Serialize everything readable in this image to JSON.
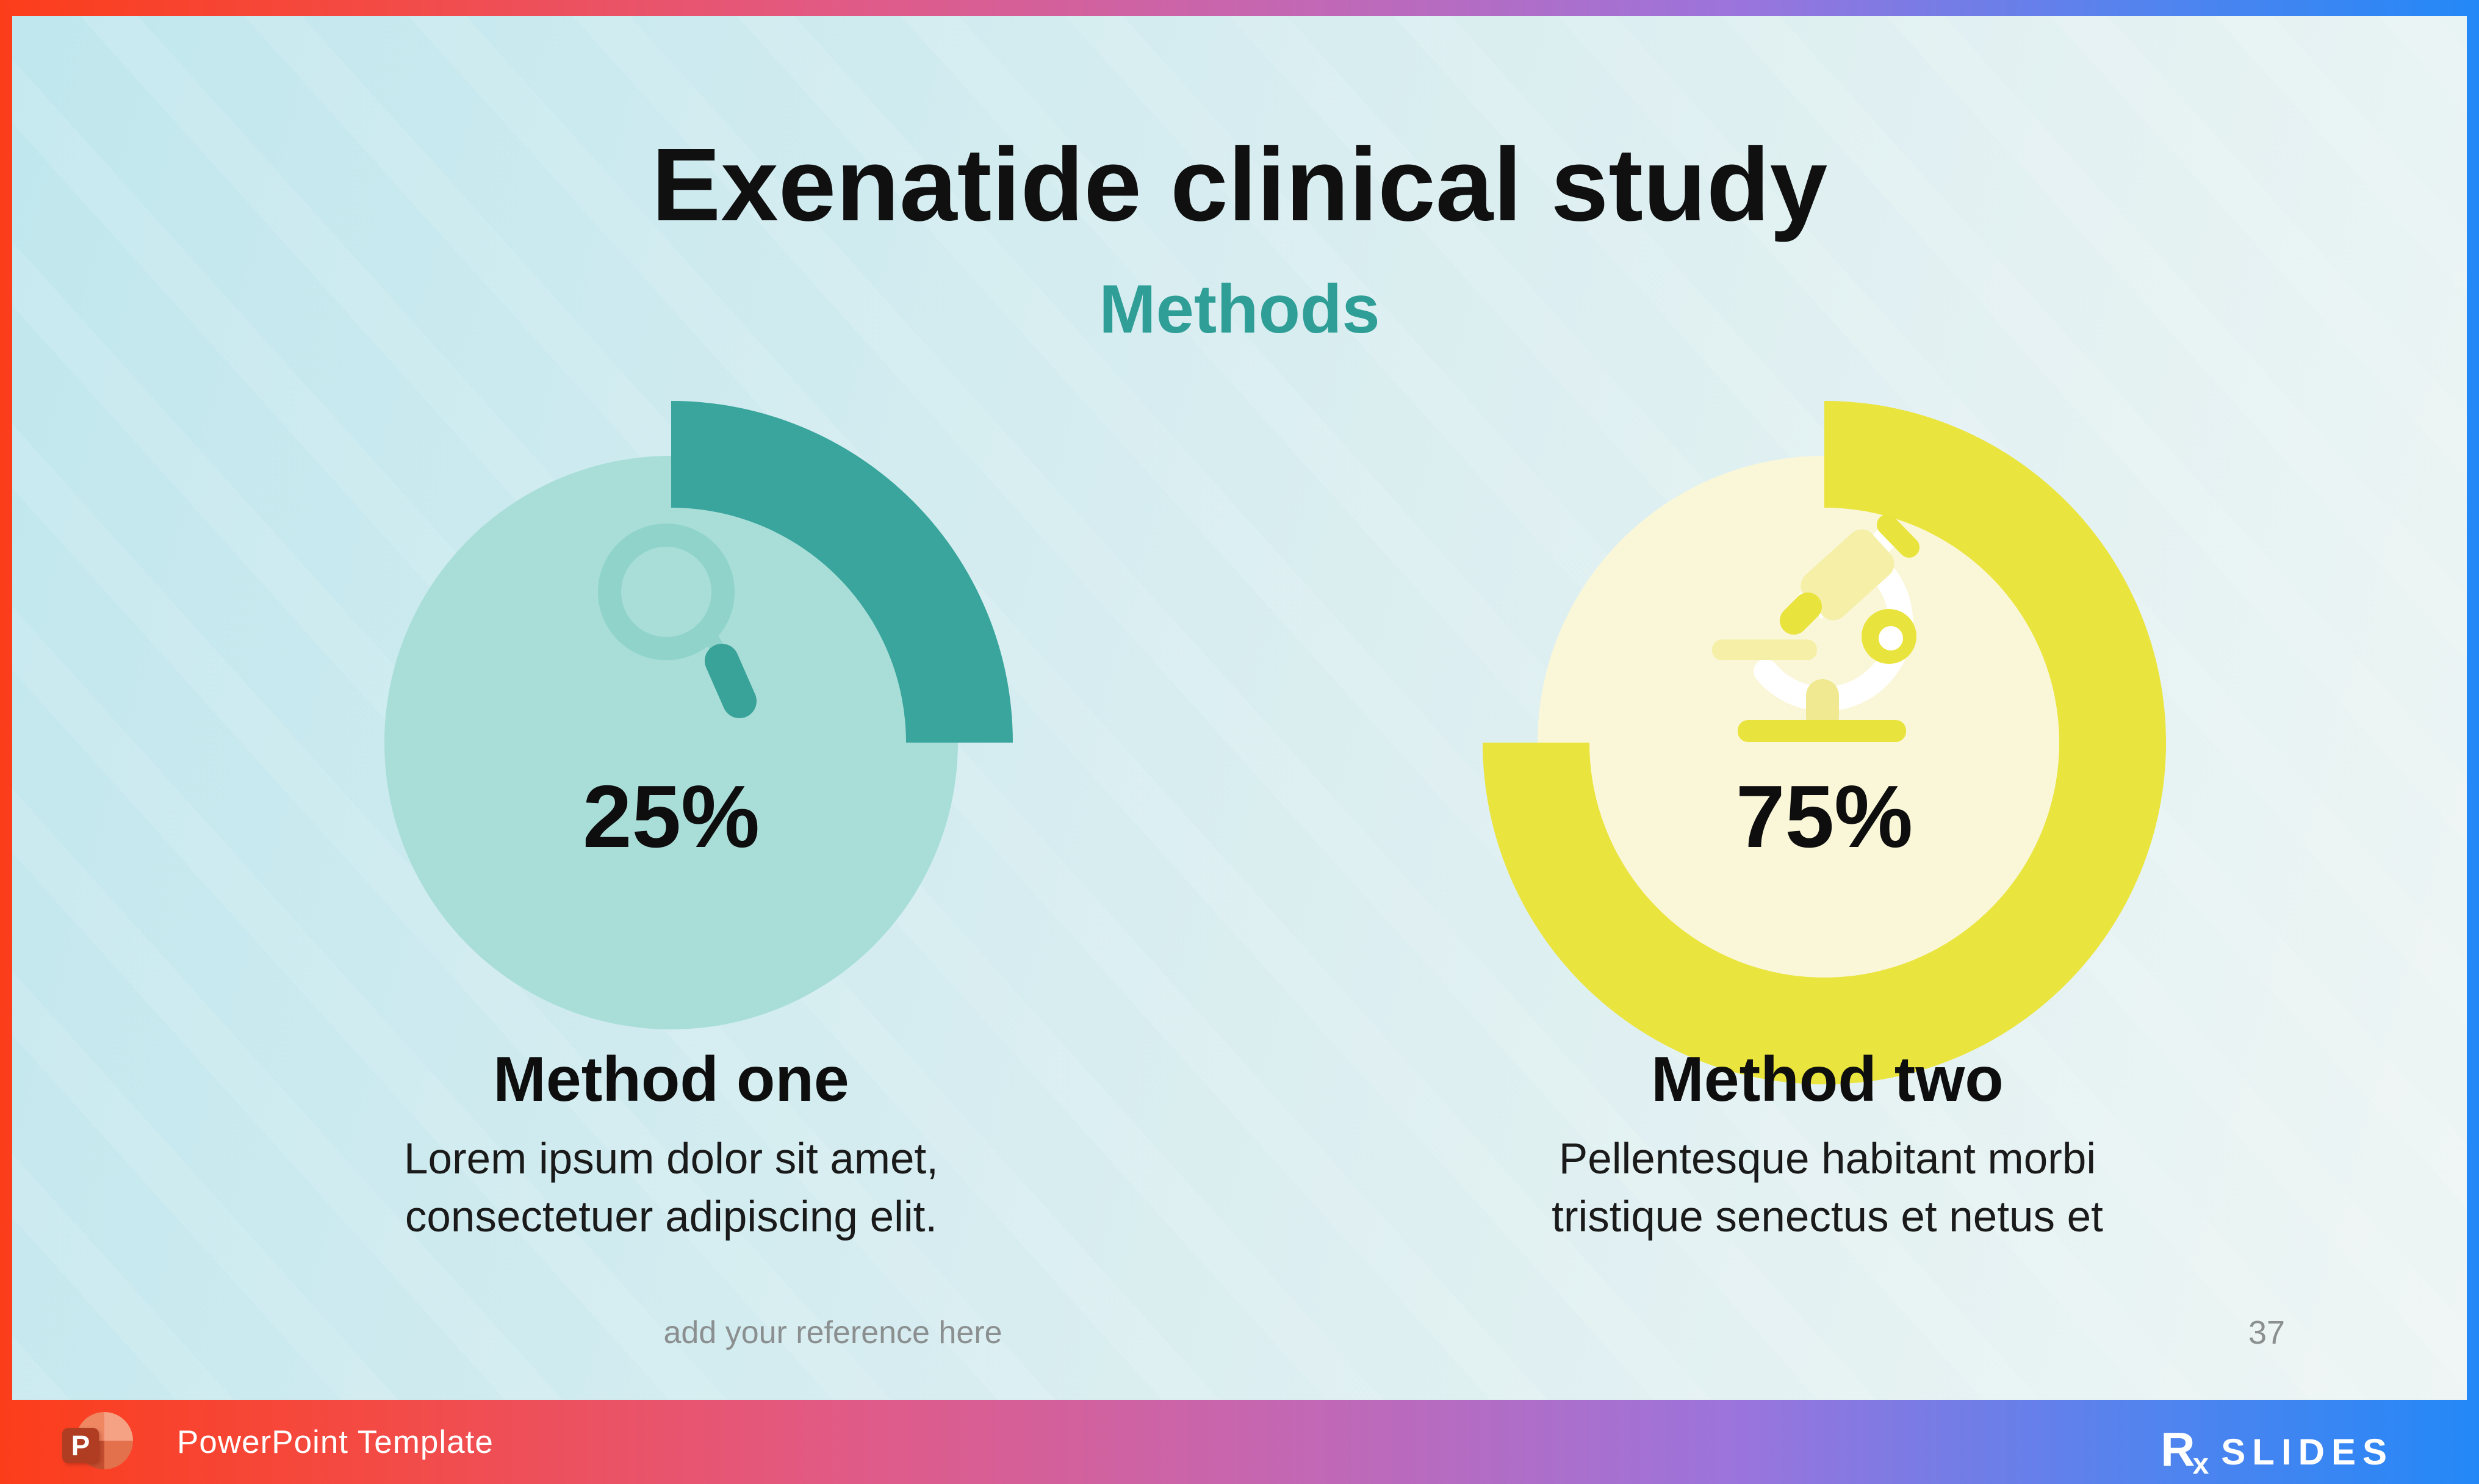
{
  "slide": {
    "title": "Exenatide clinical study",
    "subtitle": "Methods",
    "reference_placeholder": "add your reference here",
    "page_number": "37"
  },
  "methods": [
    {
      "percent_label": "25%",
      "name": "Method one",
      "description": "Lorem ipsum dolor sit amet,\nconsectetuer adipiscing elit.",
      "circle_color": "#a9ded8",
      "arc_color": "#39a59d",
      "icon": "search-icon"
    },
    {
      "percent_label": "75%",
      "name": "Method two",
      "description": "Pellentesque habitant morbi\ntristique senectus et netus et",
      "circle_color": "#faf7d9",
      "arc_color": "#eae43e",
      "icon": "microscope-icon"
    }
  ],
  "chart_data": [
    {
      "type": "donut",
      "title": "Method one",
      "value": 25,
      "max": 100,
      "center_label": "25%",
      "start_angle_deg": 0,
      "direction": "clockwise",
      "fill_color": "#a9ded8",
      "arc_color": "#39a59d"
    },
    {
      "type": "donut",
      "title": "Method two",
      "value": 75,
      "max": 100,
      "center_label": "75%",
      "start_angle_deg": 0,
      "direction": "clockwise",
      "fill_color": "#faf7d9",
      "arc_color": "#eae43e"
    }
  ],
  "colors": {
    "subtitle_teal": "#2f9e97",
    "magnifier_ring": "#8fd3cb",
    "magnifier_handle": "#3aa399",
    "microscope_pale": "#f5efa8",
    "microscope_pale2": "#f0e992",
    "microscope_bright": "#e9e33d",
    "microscope_white": "#ffffff",
    "gray_text": "#8b8f90"
  },
  "footer": {
    "powerpoint_letter": "P",
    "brand_label": "PowerPoint Template",
    "logo_r": "R",
    "logo_x": "x",
    "logo_rest": "SLIDES"
  }
}
